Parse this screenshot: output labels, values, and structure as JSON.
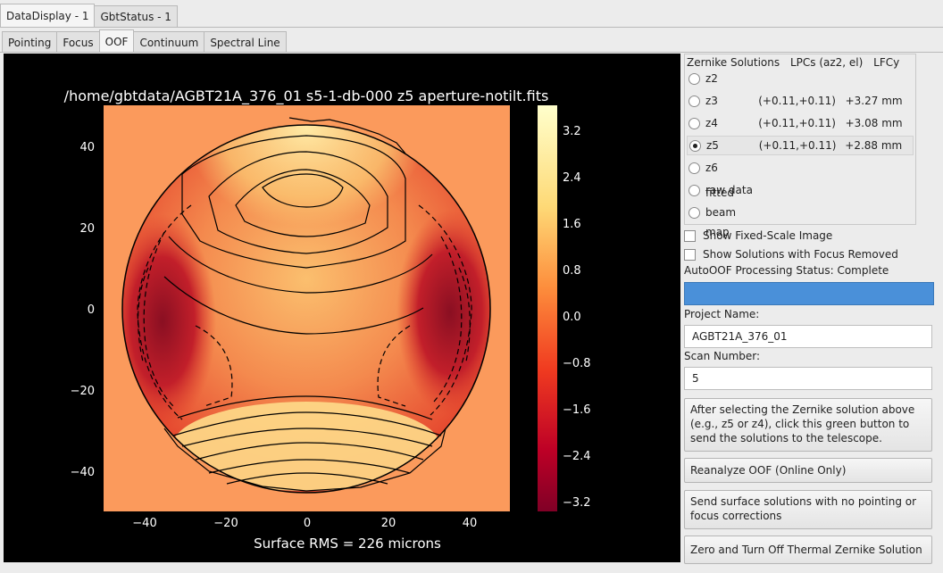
{
  "top_tabs": [
    "DataDisplay - 1",
    "GbtStatus - 1"
  ],
  "sub_tabs": [
    "Pointing",
    "Focus",
    "OOF",
    "Continuum",
    "Spectral Line"
  ],
  "plot": {
    "title": "/home/gbtdata/AGBT21A_376_01 s5-1-db-000 z5 aperture-notilt.fits",
    "footer": "Surface RMS = 226 microns",
    "x_ticks": [
      "−40",
      "−20",
      "0",
      "20",
      "40"
    ],
    "y_ticks": [
      "40",
      "20",
      "0",
      "−20",
      "−40"
    ],
    "colorbar_ticks": [
      "3.2",
      "2.4",
      "1.6",
      "0.8",
      "0.0",
      "−0.8",
      "−1.6",
      "−2.4",
      "−3.2"
    ]
  },
  "zernike": {
    "headers": [
      "Zernike Solutions",
      "LPCs (az2, el)",
      "LFCy"
    ],
    "options": [
      {
        "name": "z2",
        "lpc": "",
        "lfc": "",
        "selected": false
      },
      {
        "name": "z3",
        "lpc": "(+0.11,+0.11)",
        "lfc": "+3.27 mm",
        "selected": false
      },
      {
        "name": "z4",
        "lpc": "(+0.11,+0.11)",
        "lfc": "+3.08 mm",
        "selected": false
      },
      {
        "name": "z5",
        "lpc": "(+0.11,+0.11)",
        "lfc": "+2.88 mm",
        "selected": true
      },
      {
        "name": "z6",
        "lpc": "",
        "lfc": "",
        "selected": false
      },
      {
        "name": "raw data",
        "lpc": "",
        "lfc": "",
        "selected": false
      },
      {
        "name": "fitted beam map",
        "lpc": "",
        "lfc": "",
        "selected": false
      }
    ]
  },
  "options": {
    "fixed_scale": "Show Fixed-Scale Image",
    "focus_removed": "Show Solutions with Focus Removed"
  },
  "status": {
    "text": "AutoOOF Processing Status: Complete"
  },
  "project": {
    "label": "Project Name:",
    "value": "AGBT21A_376_01"
  },
  "scan": {
    "label": "Scan Number:",
    "value": "5"
  },
  "buttons": {
    "send": "After selecting the Zernike solution above (e.g., z5 or z4), click this green button to send the solutions to the telescope.",
    "reanalyze": "Reanalyze OOF (Online Only)",
    "send_surface": "Send surface solutions with no pointing or focus corrections",
    "zero_thermal": "Zero and Turn Off Thermal Zernike Solution"
  },
  "colors": {
    "status_bar": "#4a90d9",
    "colormap": "YlOrRd_r"
  }
}
